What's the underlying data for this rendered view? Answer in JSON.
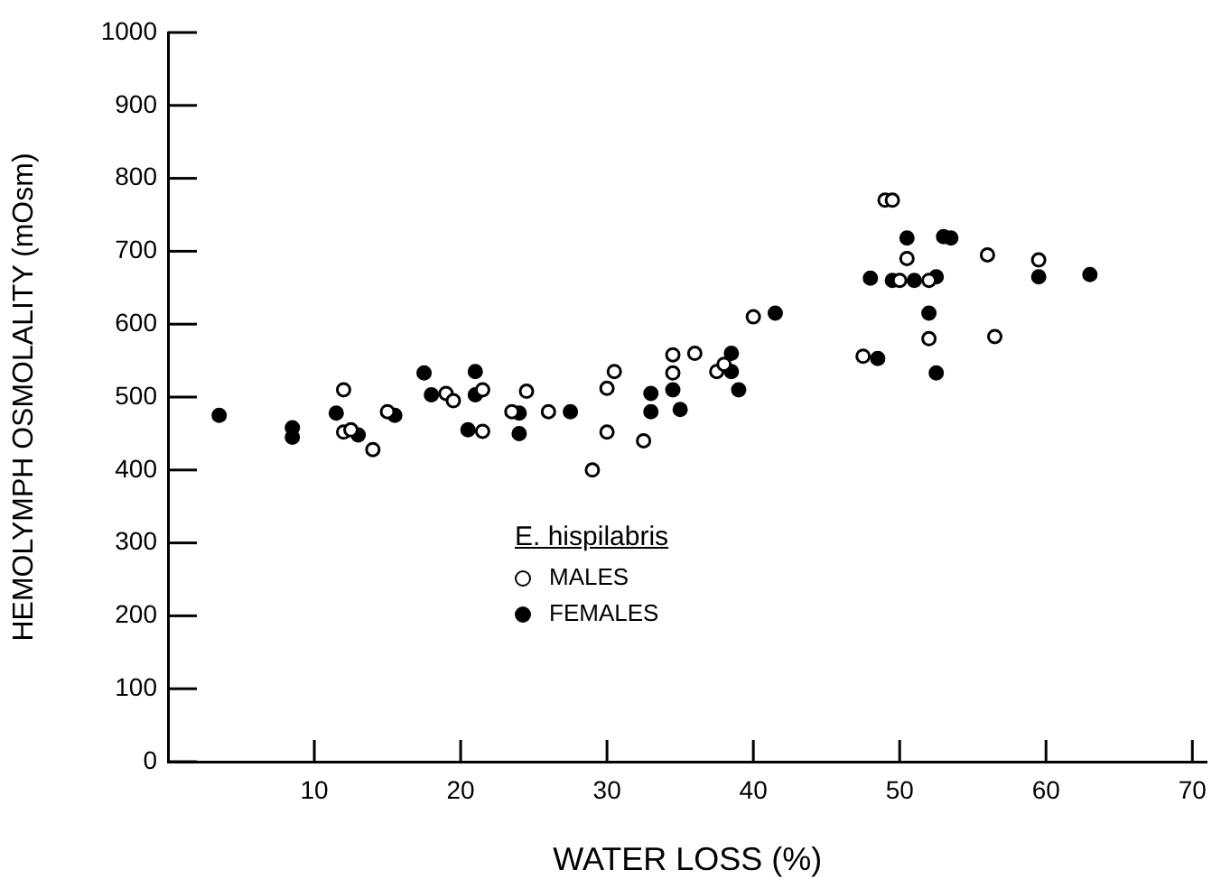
{
  "chart_data": {
    "type": "scatter",
    "xlabel": "WATER LOSS (%)",
    "ylabel": "HEMOLYMPH OSMOLALITY (mOsm)",
    "legend_title": "E. hispilabris",
    "legend": "bottom",
    "grid": false,
    "marker": "circle",
    "xlim": [
      0,
      71
    ],
    "xticks": [
      10,
      20,
      30,
      40,
      50,
      60,
      70
    ],
    "ylim": [
      0,
      1000
    ],
    "yticks": [
      0,
      100,
      200,
      300,
      400,
      500,
      600,
      700,
      800,
      900,
      1000
    ],
    "series": [
      {
        "name": "MALES",
        "color": "#000000",
        "x": [
          12,
          12,
          12.5,
          14,
          15,
          19,
          19.5,
          21.5,
          21.5,
          23.5,
          24.5,
          26,
          29,
          30,
          30,
          30.5,
          32.5,
          34.5,
          34.5,
          36,
          37.5,
          38,
          40,
          47.5,
          49,
          49.5,
          50,
          50.5,
          52,
          52,
          56,
          56.5,
          59.5
        ],
        "values": [
          510,
          452,
          455,
          428,
          480,
          505,
          495,
          453,
          510,
          480,
          508,
          480,
          400,
          512,
          452,
          535,
          440,
          533,
          558,
          560,
          535,
          545,
          610,
          556,
          770,
          770,
          660,
          690,
          580,
          660,
          695,
          583,
          688
        ]
      },
      {
        "name": "FEMALES",
        "color": "#000000",
        "x": [
          3.5,
          8.5,
          8.5,
          11.5,
          13,
          15.5,
          17.5,
          18,
          20.5,
          21,
          21,
          24,
          24,
          27.5,
          33,
          33,
          34.5,
          35,
          38.5,
          38.5,
          39,
          41.5,
          48,
          48.5,
          49.5,
          50.5,
          51,
          52,
          52.5,
          52.5,
          53,
          53.5,
          59.5,
          63
        ],
        "values": [
          475,
          458,
          445,
          478,
          448,
          475,
          533,
          503,
          455,
          535,
          503,
          450,
          478,
          480,
          505,
          480,
          510,
          483,
          535,
          560,
          510,
          615,
          663,
          553,
          660,
          718,
          660,
          615,
          533,
          665,
          720,
          718,
          665,
          668
        ]
      }
    ]
  }
}
